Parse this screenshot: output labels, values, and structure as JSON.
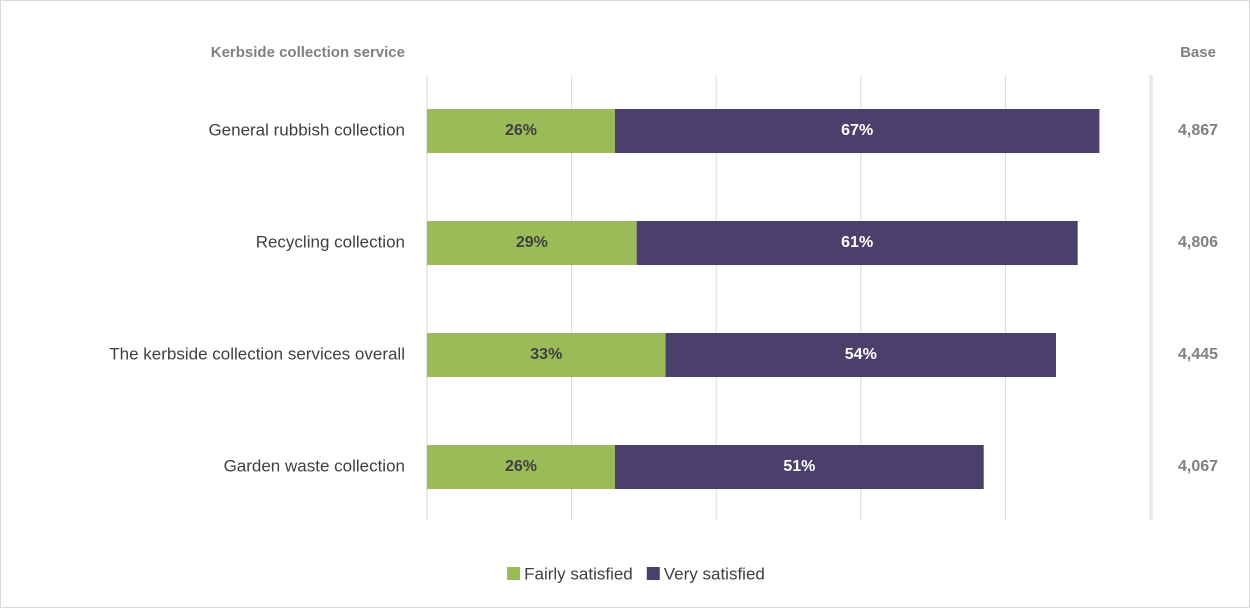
{
  "chart_data": {
    "type": "stacked_bar_horizontal",
    "axis_title": "Kerbside collection service",
    "categories": [
      "General rubbish collection",
      "Recycling collection",
      "The kerbside collection services overall",
      "Garden waste collection"
    ],
    "series": [
      {
        "name": "Fairly satisfied",
        "color": "#9bbb59",
        "values": [
          26,
          29,
          33,
          26
        ],
        "value_labels": [
          "26%",
          "29%",
          "33%",
          "26%"
        ]
      },
      {
        "name": "Very satisfied",
        "color": "#4b3f6b",
        "values": [
          67,
          61,
          54,
          51
        ],
        "value_labels": [
          "67%",
          "61%",
          "54%",
          "51%"
        ]
      }
    ],
    "xlim": [
      0,
      100
    ],
    "xticks": [
      0,
      20,
      40,
      60,
      80,
      100
    ],
    "grid": true,
    "legend": "bottom",
    "base": {
      "title": "Base",
      "values": [
        4867,
        4806,
        4445,
        4067
      ],
      "value_labels": [
        "4,867",
        "4,806",
        "4,445",
        "4,067"
      ]
    }
  }
}
